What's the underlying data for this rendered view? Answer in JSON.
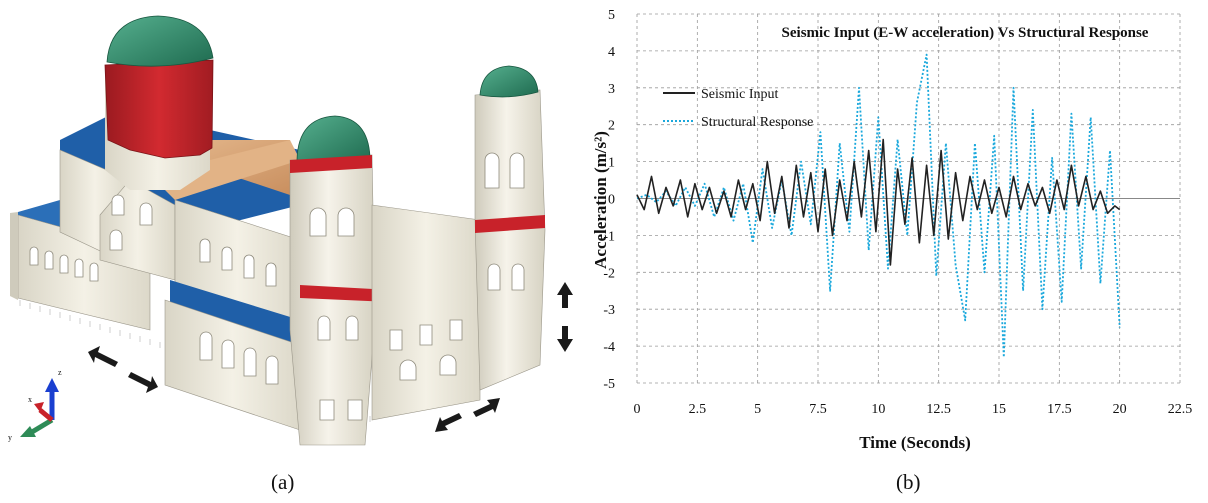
{
  "captions": {
    "left": "(a)",
    "right": "(b)"
  },
  "model_view": {
    "axis_triad": {
      "x": "x",
      "y": "y",
      "z": "z"
    },
    "colors": {
      "wall": "#f2efe4",
      "dome": "#2f8a68",
      "drum": "#c8222a",
      "roof": "#d9a67a",
      "floor": "#1f5fa8",
      "band": "#c8222a"
    }
  },
  "chart_data": {
    "type": "line",
    "title": "Seismic Input (E-W acceleration) Vs Structural Response",
    "xlabel": "Time (Seconds)",
    "ylabel": "Acceleration (m/s²)",
    "xlim": [
      0,
      22.5
    ],
    "ylim": [
      -5,
      5
    ],
    "xticks": [
      "0",
      "2.5",
      "5",
      "7.5",
      "10",
      "12.5",
      "15",
      "17.5",
      "20",
      "22.5"
    ],
    "yticks": [
      "5",
      "4",
      "3",
      "2",
      "1",
      "0",
      "-1",
      "-2",
      "-3",
      "-4",
      "-5"
    ],
    "grid": true,
    "legend_position": "upper-left",
    "series": [
      {
        "name": "Seismic Input",
        "color": "#222222",
        "style": "solid",
        "x": [
          0,
          0.3,
          0.6,
          0.9,
          1.2,
          1.5,
          1.8,
          2.1,
          2.4,
          2.7,
          3.0,
          3.3,
          3.6,
          3.9,
          4.2,
          4.5,
          4.8,
          5.1,
          5.4,
          5.7,
          6.0,
          6.3,
          6.6,
          6.9,
          7.2,
          7.5,
          7.8,
          8.1,
          8.4,
          8.7,
          9.0,
          9.3,
          9.6,
          9.9,
          10.2,
          10.5,
          10.8,
          11.1,
          11.4,
          11.7,
          12.0,
          12.3,
          12.6,
          12.9,
          13.2,
          13.5,
          13.8,
          14.1,
          14.4,
          14.7,
          15.0,
          15.3,
          15.6,
          15.9,
          16.2,
          16.5,
          16.8,
          17.1,
          17.4,
          17.7,
          18.0,
          18.3,
          18.6,
          18.9,
          19.2,
          19.5,
          19.8,
          20.0
        ],
        "values": [
          0.1,
          -0.3,
          0.6,
          -0.4,
          0.3,
          -0.2,
          0.5,
          -0.5,
          0.4,
          -0.3,
          0.3,
          -0.4,
          0.2,
          -0.5,
          0.5,
          -0.3,
          0.4,
          -0.6,
          1.0,
          -0.4,
          0.6,
          -0.8,
          0.9,
          -0.5,
          0.7,
          -0.9,
          0.8,
          -1.0,
          0.5,
          -0.6,
          1.0,
          -0.5,
          1.3,
          -0.9,
          1.6,
          -1.8,
          0.8,
          -0.7,
          1.1,
          -1.2,
          0.9,
          -1.0,
          1.3,
          -1.1,
          0.7,
          -0.6,
          0.6,
          -0.3,
          0.5,
          -0.4,
          0.3,
          -0.5,
          0.6,
          -0.3,
          0.4,
          -0.2,
          0.3,
          -0.4,
          0.5,
          -0.3,
          0.9,
          -0.2,
          0.6,
          -0.3,
          0.2,
          -0.4,
          -0.2,
          -0.3
        ]
      },
      {
        "name": "Structural Response",
        "color": "#1aa8dc",
        "style": "dotted",
        "x": [
          0,
          0.4,
          0.8,
          1.2,
          1.6,
          2.0,
          2.4,
          2.8,
          3.2,
          3.6,
          4.0,
          4.4,
          4.8,
          5.2,
          5.6,
          6.0,
          6.4,
          6.8,
          7.2,
          7.6,
          8.0,
          8.4,
          8.8,
          9.2,
          9.6,
          10.0,
          10.4,
          10.8,
          11.2,
          11.6,
          12.0,
          12.4,
          12.8,
          13.2,
          13.6,
          14.0,
          14.4,
          14.8,
          15.2,
          15.6,
          16.0,
          16.4,
          16.8,
          17.2,
          17.6,
          18.0,
          18.4,
          18.8,
          19.2,
          19.6,
          20.0
        ],
        "values": [
          0.0,
          0.1,
          -0.1,
          0.2,
          -0.2,
          0.3,
          -0.2,
          0.4,
          -0.5,
          0.3,
          -0.6,
          0.4,
          -1.2,
          0.8,
          -0.8,
          0.5,
          -1.0,
          1.0,
          -0.7,
          1.8,
          -2.5,
          1.5,
          -0.9,
          3.0,
          -1.4,
          2.2,
          -1.9,
          1.6,
          -1.0,
          2.6,
          3.9,
          -2.1,
          1.5,
          -1.8,
          -3.3,
          1.5,
          -2.0,
          1.7,
          -4.3,
          3.0,
          -2.5,
          2.4,
          -3.0,
          1.1,
          -2.8,
          2.3,
          -1.9,
          2.2,
          -2.3,
          1.3,
          -3.5
        ]
      }
    ]
  }
}
